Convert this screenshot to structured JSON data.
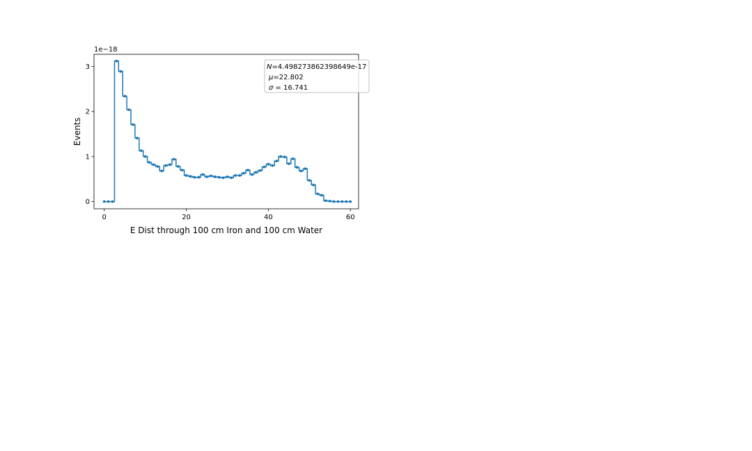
{
  "chart_data": {
    "type": "line",
    "drawstyle": "steps",
    "marker": "dot",
    "xlabel": "E Dist through 100 cm Iron and 100 cm Water",
    "ylabel": "Events",
    "y_offset_label": "1e−18",
    "xlim": [
      -2.5,
      62.0
    ],
    "ylim": [
      -0.16,
      3.27
    ],
    "x_ticks": [
      0,
      20,
      40,
      60
    ],
    "x_tick_labels": [
      "0",
      "20",
      "40",
      "60"
    ],
    "y_ticks": [
      0,
      1,
      2,
      3
    ],
    "y_tick_labels": [
      "0",
      "1",
      "2",
      "3"
    ],
    "grid": false,
    "color": "#1f77b4",
    "legend_position": "top-right",
    "stats": {
      "N_prefix": "N",
      "N_value": "=4.498273862398649e-17",
      "mu_prefix": "μ",
      "mu_value": "=22.802",
      "sigma_prefix": "σ",
      "sigma_value": " = 16.741"
    },
    "series": [
      {
        "x": [
          0,
          1,
          2,
          3,
          4,
          5,
          6,
          7,
          8,
          9,
          10,
          11,
          12,
          13,
          14,
          15,
          16,
          17,
          18,
          19,
          20,
          21,
          22,
          23,
          24,
          25,
          26,
          27,
          28,
          29,
          30,
          31,
          32,
          33,
          34,
          35,
          36,
          37,
          38,
          39,
          40,
          41,
          42,
          43,
          44,
          45,
          46,
          47,
          48,
          49,
          50,
          51,
          52,
          53,
          54,
          55,
          56,
          57,
          58,
          59,
          60
        ],
        "y": [
          0.0,
          0.0,
          0.0,
          3.12,
          2.89,
          2.34,
          2.04,
          1.71,
          1.41,
          1.13,
          1.0,
          0.87,
          0.82,
          0.78,
          0.68,
          0.8,
          0.82,
          0.94,
          0.78,
          0.7,
          0.58,
          0.56,
          0.54,
          0.54,
          0.6,
          0.55,
          0.57,
          0.55,
          0.54,
          0.53,
          0.55,
          0.53,
          0.58,
          0.58,
          0.63,
          0.7,
          0.6,
          0.65,
          0.69,
          0.77,
          0.83,
          0.8,
          0.9,
          1.0,
          0.99,
          0.84,
          0.95,
          0.76,
          0.68,
          0.73,
          0.47,
          0.37,
          0.17,
          0.14,
          0.02,
          0.01,
          0.0,
          0.0,
          0.0,
          0.0,
          0.0
        ]
      }
    ]
  }
}
